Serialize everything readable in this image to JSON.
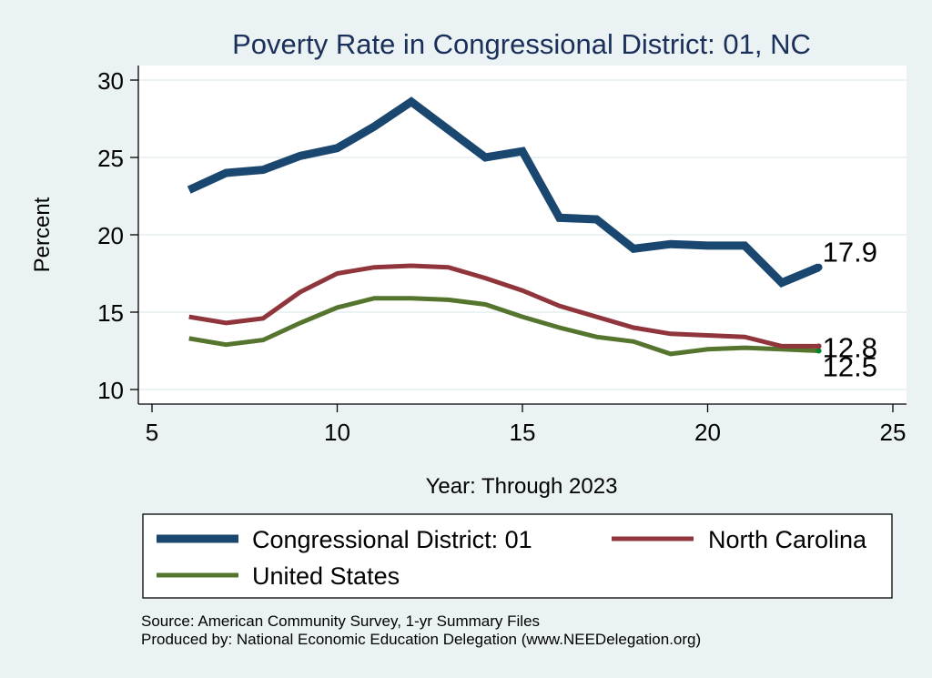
{
  "chart_data": {
    "type": "line",
    "title": "Poverty Rate in Congressional District:  01, NC",
    "xlabel": "Year: Through 2023",
    "ylabel": "Percent",
    "xlim": [
      4.5,
      25.4
    ],
    "ylim": [
      9.1,
      31.0
    ],
    "xticks": [
      5,
      10,
      15,
      20,
      25
    ],
    "yticks": [
      10,
      15,
      20,
      25,
      30
    ],
    "grid": "horizontal",
    "x": [
      6,
      7,
      8,
      9,
      10,
      11,
      12,
      13,
      14,
      15,
      16,
      17,
      18,
      19,
      20,
      21,
      22,
      23
    ],
    "series": [
      {
        "name": "Congressional District:  01",
        "color": "#1a476f",
        "end_label": "17.9",
        "values": [
          22.9,
          24.0,
          24.2,
          25.1,
          25.6,
          27.0,
          28.6,
          26.8,
          25.0,
          25.4,
          21.1,
          21.0,
          19.1,
          19.4,
          19.3,
          19.3,
          16.9,
          17.9
        ]
      },
      {
        "name": "North Carolina",
        "color": "#90353b",
        "end_label": "12.8",
        "values": [
          14.7,
          14.3,
          14.6,
          16.3,
          17.5,
          17.9,
          18.0,
          17.9,
          17.2,
          16.4,
          15.4,
          14.7,
          14.0,
          13.6,
          13.5,
          13.4,
          12.8,
          12.8
        ]
      },
      {
        "name": "United States",
        "color": "#55752f",
        "end_label": "12.5",
        "values": [
          13.3,
          12.9,
          13.2,
          14.3,
          15.3,
          15.9,
          15.9,
          15.8,
          15.5,
          14.7,
          14.0,
          13.4,
          13.1,
          12.3,
          12.6,
          12.7,
          12.6,
          12.5
        ]
      }
    ],
    "legend_position": "bottom",
    "notes": [
      "Source: American Community Survey, 1-yr Summary Files",
      "Produced by: National Economic Education Delegation (www.NEEDelegation.org)"
    ]
  },
  "colors": {
    "background": "#eaf2f3",
    "plot_background": "#ffffff",
    "gridline": "#eaf2f3",
    "title": "#1a2f5a",
    "end_marker_us": "#00882b"
  }
}
